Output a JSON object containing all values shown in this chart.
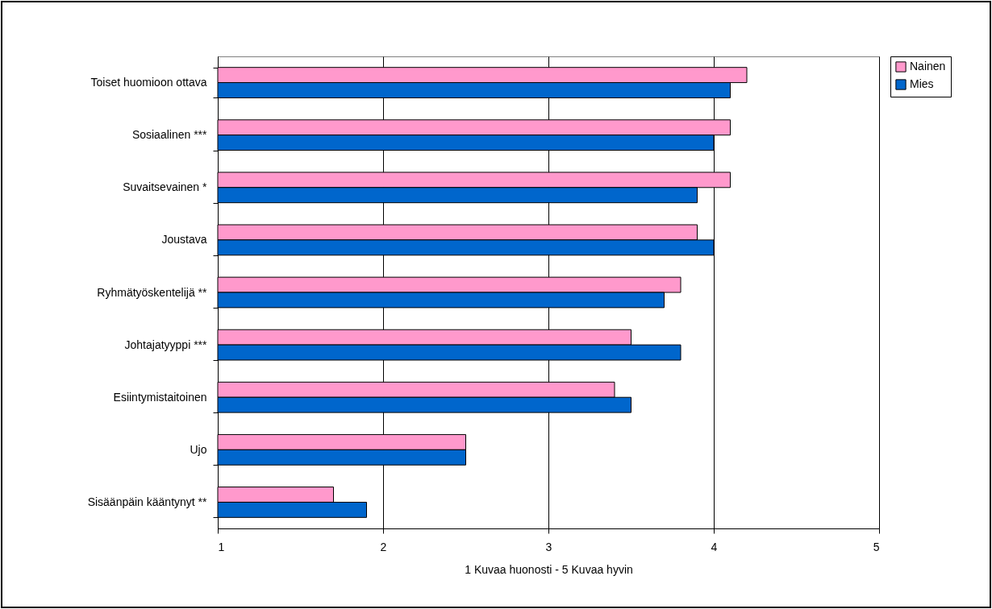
{
  "chart_data": {
    "type": "bar",
    "orientation": "horizontal",
    "xlabel": "1 Kuvaa huonosti - 5 Kuvaa hyvin",
    "categories": [
      "Toiset huomioon ottava",
      "Sosiaalinen ***",
      "Suvaitsevainen *",
      "Joustava",
      "Ryhmätyöskentelijä **",
      "Johtajatyyppi ***",
      "Esiintymistaitoinen",
      "Ujo",
      "Sisäänpäin kääntynyt **"
    ],
    "series": [
      {
        "name": "Nainen",
        "color": "#ff99cc",
        "values": [
          4.2,
          4.1,
          4.1,
          3.9,
          3.8,
          3.5,
          3.4,
          2.5,
          1.7
        ]
      },
      {
        "name": "Mies",
        "color": "#0066cc",
        "values": [
          4.1,
          4.0,
          3.9,
          4.0,
          3.7,
          3.8,
          3.5,
          2.5,
          1.9
        ]
      }
    ],
    "xlim": [
      1,
      5
    ],
    "xticks": [
      1,
      2,
      3,
      4,
      5
    ],
    "grid": "x",
    "legend": "right"
  }
}
